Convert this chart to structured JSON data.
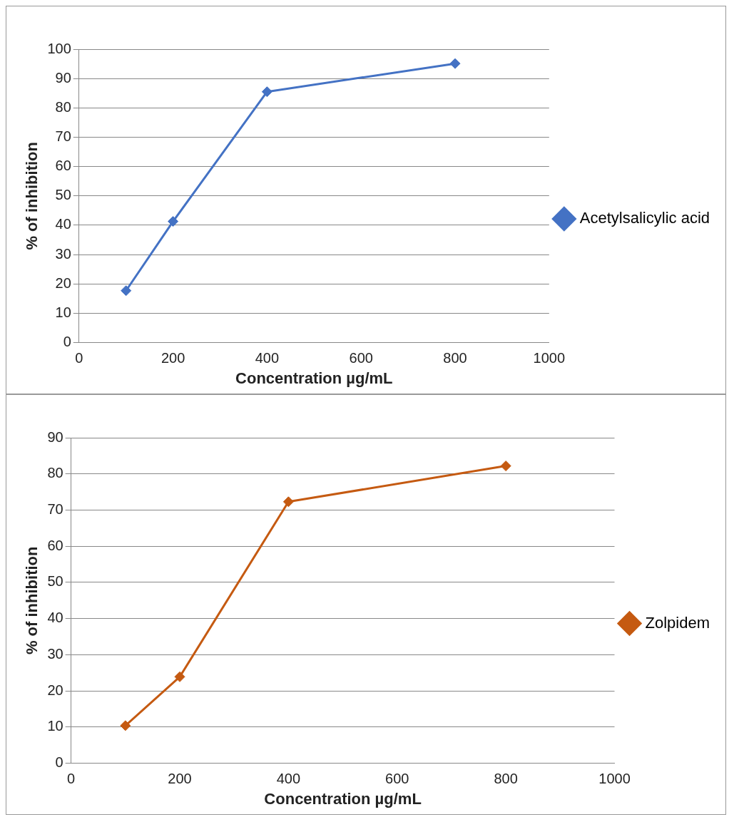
{
  "chart_data": [
    {
      "type": "line",
      "xlabel": "Concentration µg/mL",
      "ylabel": "% of inhibition",
      "x": [
        100,
        200,
        400,
        800
      ],
      "series": [
        {
          "name": "Acetylsalicylic acid",
          "color": "#4472c4",
          "values": [
            17.7,
            41.3,
            85.5,
            95.1
          ]
        }
      ],
      "xlim": [
        0,
        1000
      ],
      "xticks": [
        0,
        200,
        400,
        600,
        800,
        1000
      ],
      "ylim": [
        0,
        100
      ],
      "yticks": [
        0,
        10,
        20,
        30,
        40,
        50,
        60,
        70,
        80,
        90,
        100
      ],
      "grid": "y",
      "legend": "right",
      "marker": "diamond",
      "line_style": "solid"
    },
    {
      "type": "line",
      "xlabel": "Concentration µg/mL",
      "ylabel": "% of inhibition",
      "x": [
        100,
        200,
        400,
        800
      ],
      "series": [
        {
          "name": "Zolpidem",
          "color": "#c55a11",
          "values": [
            10.4,
            23.9,
            72.3,
            82.2
          ]
        }
      ],
      "xlim": [
        0,
        1000
      ],
      "xticks": [
        0,
        200,
        400,
        600,
        800,
        1000
      ],
      "ylim": [
        0,
        90
      ],
      "yticks": [
        0,
        10,
        20,
        30,
        40,
        50,
        60,
        70,
        80,
        90
      ],
      "grid": "y",
      "legend": "right",
      "marker": "diamond",
      "line_style": "solid"
    }
  ]
}
